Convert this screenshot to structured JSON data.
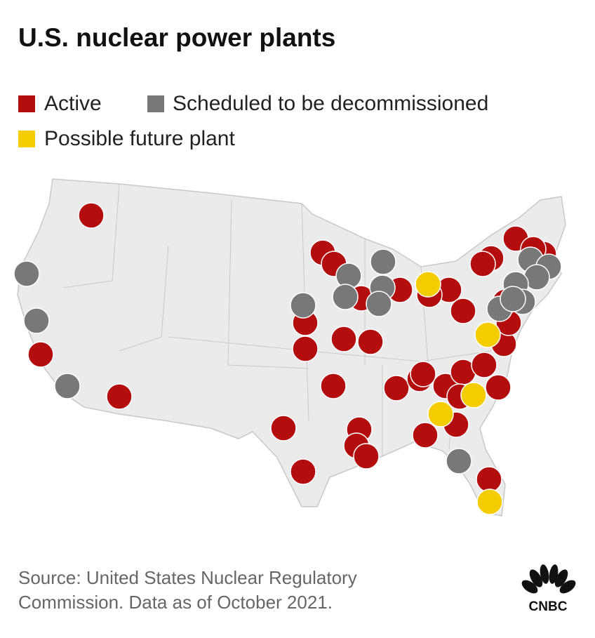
{
  "header": {
    "title": "U.S. nuclear power plants"
  },
  "legend": [
    {
      "label": "Active",
      "color": "#b30d0d"
    },
    {
      "label": "Scheduled to be decommissioned",
      "color": "#787878"
    },
    {
      "label": "Possible future plant",
      "color": "#f4cc00"
    }
  ],
  "footer": {
    "source": [
      "Source: United States Nuclear Regulatory",
      "Commission. Data as of October 2021."
    ]
  },
  "logo": "CNBC"
}
